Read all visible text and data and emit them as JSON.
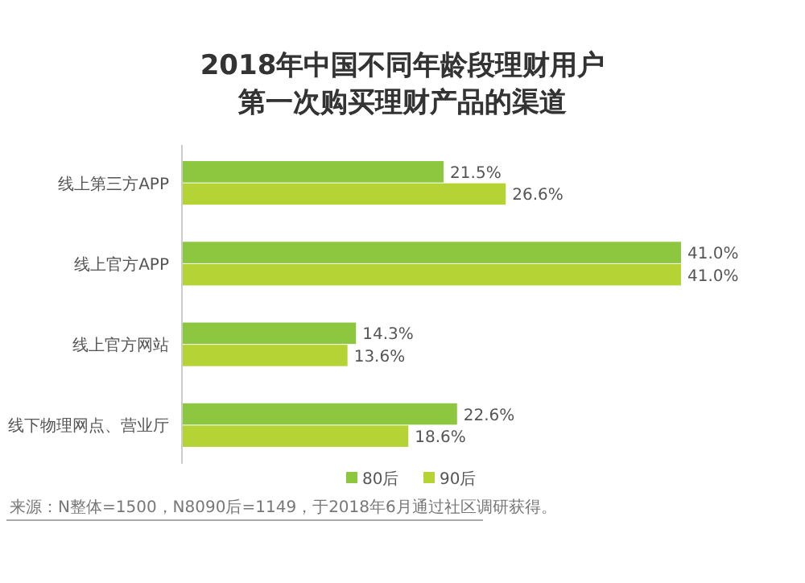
{
  "chart_data": {
    "type": "bar",
    "orientation": "horizontal",
    "title": "2018年中国不同年龄段理财用户",
    "subtitle": "第一次购买理财产品的渠道",
    "categories": [
      "线上第三方APP",
      "线上官方APP",
      "线上官方网站",
      "线下物理网点、营业厅"
    ],
    "series": [
      {
        "name": "80后",
        "color": "#8dc63f",
        "values": [
          21.5,
          41.0,
          14.3,
          22.6
        ],
        "value_labels": [
          "21.5%",
          "41.0%",
          "14.3%",
          "22.6%"
        ]
      },
      {
        "name": "90后",
        "color": "#b5d334",
        "values": [
          26.6,
          41.0,
          13.6,
          18.6
        ],
        "value_labels": [
          "26.6%",
          "41.0%",
          "13.6%",
          "18.6%"
        ]
      }
    ],
    "legend": "bottom",
    "grid": false,
    "annotations": [
      "来源：N整体=1500，N8090后=1149，于2018年6月通过社区调研获得。"
    ]
  }
}
